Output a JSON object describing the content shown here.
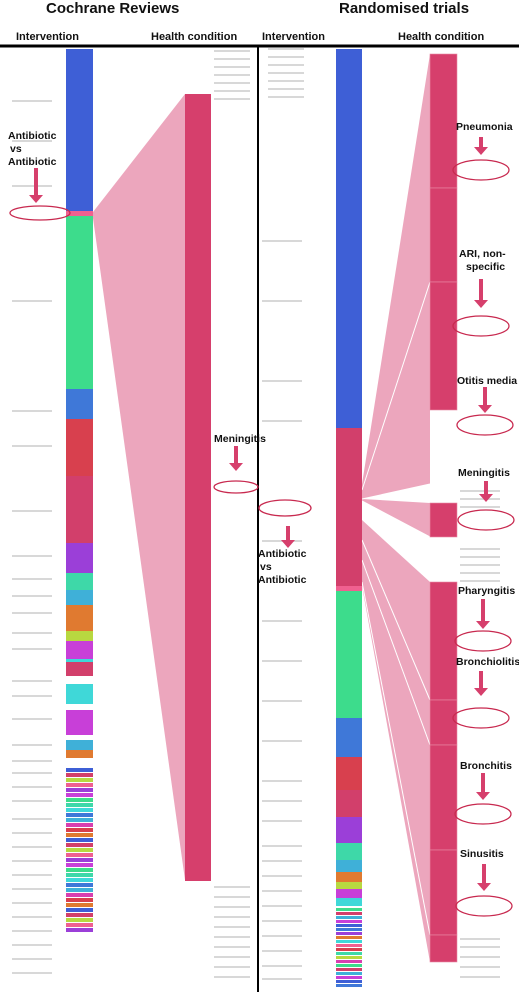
{
  "left_panel": {
    "title": "Cochrane Reviews",
    "intervention_header": "Intervention",
    "condition_header": "Health condition",
    "annotations": [
      {
        "id": "abx",
        "text_lines": [
          "Antibiotic",
          "vs",
          "Antibiotic"
        ]
      },
      {
        "id": "meningitis",
        "text_lines": [
          "Meningitis"
        ]
      }
    ]
  },
  "right_panel": {
    "title": "Randomised trials",
    "intervention_header": "Intervention",
    "condition_header": "Health condition",
    "annotations": [
      {
        "id": "abx",
        "text_lines": [
          "Antibiotic",
          "vs",
          "Antibiotic"
        ]
      },
      {
        "id": "pneumonia",
        "text_lines": [
          "Pneumonia"
        ]
      },
      {
        "id": "ari",
        "text_lines": [
          "ARI, non-",
          "specific"
        ]
      },
      {
        "id": "otitis",
        "text_lines": [
          "Otitis media"
        ]
      },
      {
        "id": "meningitis",
        "text_lines": [
          "Meningitis"
        ]
      },
      {
        "id": "pharyngitis",
        "text_lines": [
          "Pharyngitis"
        ]
      },
      {
        "id": "bronchiolitis",
        "text_lines": [
          "Bronchiolitis"
        ]
      },
      {
        "id": "bronchitis",
        "text_lines": [
          "Bronchitis"
        ]
      },
      {
        "id": "sinusitis",
        "text_lines": [
          "Sinusitis"
        ]
      }
    ]
  },
  "colors": {
    "link": "#eca6bd",
    "condition_bar": "#d63f6c",
    "arrow": "#d63f6c",
    "ellipse": "#c8294f",
    "intervention_palette": [
      "#3e5fd6",
      "#f06090",
      "#3ddc8c",
      "#3f78d8",
      "#d8404e",
      "#d23f6b",
      "#9b3fd8",
      "#3ed8a8",
      "#3fb0d8",
      "#e07a30",
      "#b8d840",
      "#c83fd8",
      "#3fd8d8",
      "#d83fb0"
    ]
  }
}
